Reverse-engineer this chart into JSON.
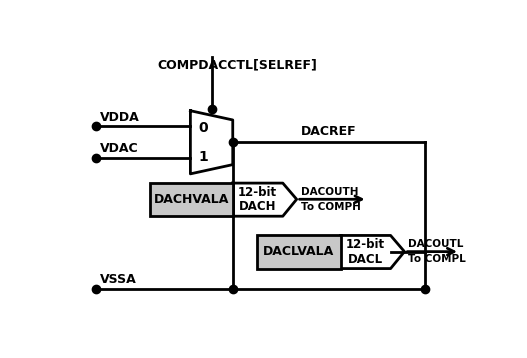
{
  "bg_color": "#ffffff",
  "line_color": "#000000",
  "compdac_label": "COMPDACCTL[SELREF]",
  "vdda_label": "VDDA",
  "vdac_label": "VDAC",
  "dacref_label": "DACREF",
  "dacouth_label": "DACOUTH",
  "dacouth_sub": "To COMPH",
  "dacoutl_label": "DACOUTL",
  "dacoutl_sub": "To COMPL",
  "vssa_label": "VSSA",
  "dachvala_label": "DACHVALA",
  "daclvala_label": "DACLVALA",
  "dach_label1": "12-bit",
  "dach_label2": "DACH",
  "dacl_label1": "12-bit",
  "dacl_label2": "DACL"
}
